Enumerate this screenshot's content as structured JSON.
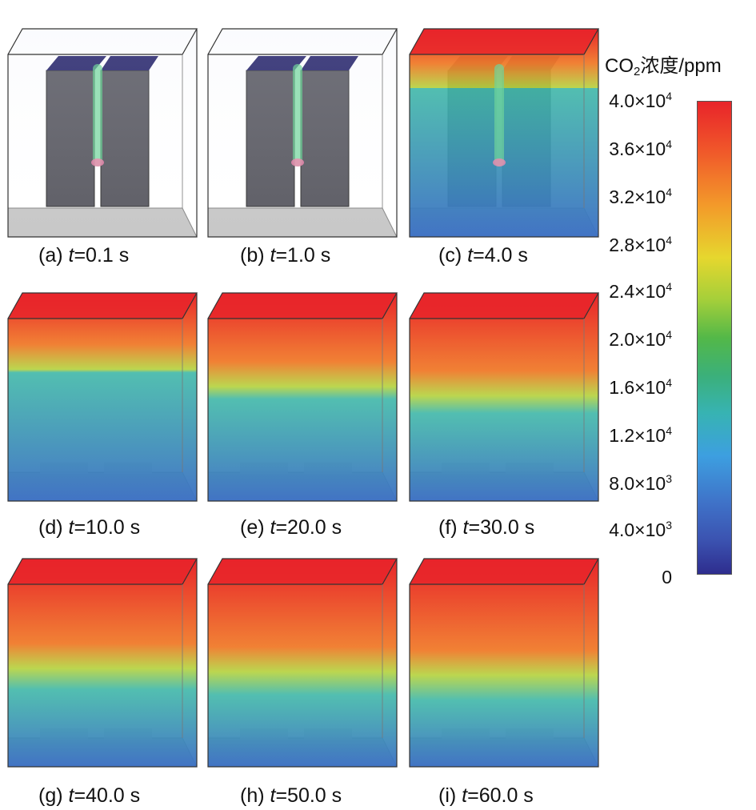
{
  "legend": {
    "title_prefix": "CO",
    "title_sub": "2",
    "title_suffix": "浓度/ppm",
    "ticks": [
      {
        "mant": "4.0×10",
        "exp": "4"
      },
      {
        "mant": "3.6×10",
        "exp": "4"
      },
      {
        "mant": "3.2×10",
        "exp": "4"
      },
      {
        "mant": "2.8×10",
        "exp": "4"
      },
      {
        "mant": "2.4×10",
        "exp": "4"
      },
      {
        "mant": "2.0×10",
        "exp": "4"
      },
      {
        "mant": "1.6×10",
        "exp": "4"
      },
      {
        "mant": "1.2×10",
        "exp": "4"
      },
      {
        "mant": "8.0×10",
        "exp": "3"
      },
      {
        "mant": "4.0×10",
        "exp": "3"
      },
      {
        "mant": "0",
        "exp": ""
      }
    ],
    "colors": {
      "max": "#e8242a",
      "mid": "#53b848",
      "min": "#2e2d8e"
    }
  },
  "panels": [
    {
      "label": "(a)",
      "t": "t",
      "value": "=0.1 s",
      "level": 0.02
    },
    {
      "label": "(b)",
      "t": "t",
      "value": "=1.0 s",
      "level": 0.05
    },
    {
      "label": "(c)",
      "t": "t",
      "value": "=4.0 s",
      "level": 0.3
    },
    {
      "label": "(d)",
      "t": "t",
      "value": "=10.0 s",
      "level": 0.45
    },
    {
      "label": "(e)",
      "t": "t",
      "value": "=20.0 s",
      "level": 0.6
    },
    {
      "label": "(f)",
      "t": "t",
      "value": "=30.0 s",
      "level": 0.68
    },
    {
      "label": "(g)",
      "t": "t",
      "value": "=40.0 s",
      "level": 0.74
    },
    {
      "label": "(h)",
      "t": "t",
      "value": "=50.0 s",
      "level": 0.77
    },
    {
      "label": "(i)",
      "t": "t",
      "value": "=60.0 s",
      "level": 0.8
    }
  ]
}
